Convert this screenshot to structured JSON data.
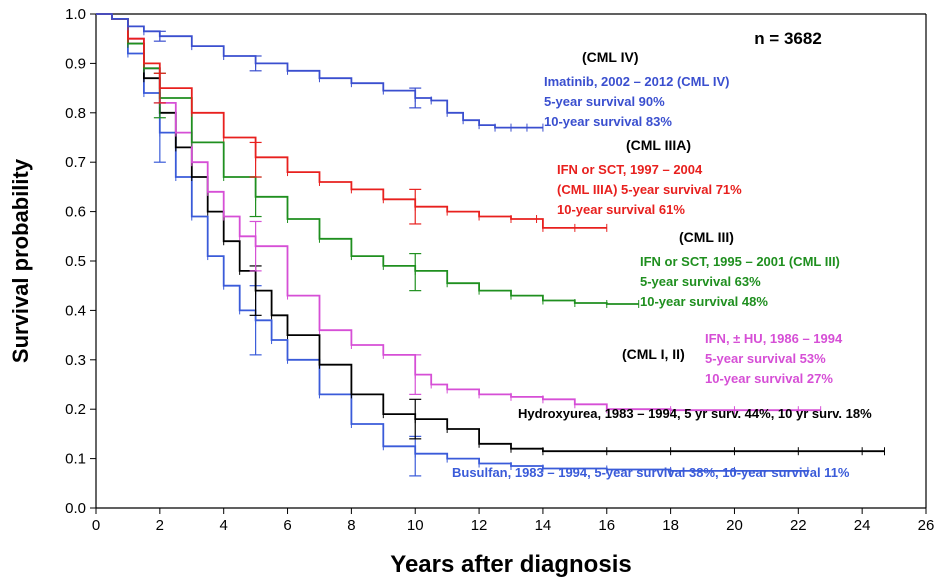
{
  "chart_data": {
    "type": "line",
    "title": "",
    "n_label": "n = 3682",
    "xlabel": "Years after diagnosis",
    "ylabel": "Survival probability",
    "xlim": [
      0,
      26
    ],
    "ylim": [
      0,
      1
    ],
    "xticks": [
      "0",
      "2",
      "4",
      "6",
      "8",
      "10",
      "12",
      "14",
      "16",
      "18",
      "20",
      "22",
      "24",
      "26"
    ],
    "yticks": [
      "0.0",
      "0.1",
      "0.2",
      "0.3",
      "0.4",
      "0.5",
      "0.6",
      "0.7",
      "0.8",
      "0.9",
      "1.0"
    ],
    "grid": false,
    "colors": {
      "imatinib": "#3a4fcf",
      "cml3a": "#e8201e",
      "cml3": "#1f8f1f",
      "ifn_hu": "#d64fd6",
      "hydroxyurea": "#000000",
      "busulfan": "#3a5bd9"
    },
    "series": [
      {
        "id": "imatinib",
        "x": [
          0,
          0.5,
          1,
          1.5,
          2,
          3,
          4,
          5,
          6,
          7,
          8,
          9,
          10,
          10.5,
          11,
          11.5,
          12,
          12.5,
          13,
          13.5,
          14
        ],
        "y": [
          1.0,
          0.99,
          0.975,
          0.965,
          0.955,
          0.935,
          0.915,
          0.9,
          0.885,
          0.87,
          0.86,
          0.845,
          0.83,
          0.825,
          0.8,
          0.785,
          0.775,
          0.77,
          0.77,
          0.77,
          0.77
        ],
        "err_x": [
          2,
          5,
          10
        ],
        "err_lo": [
          0.945,
          0.885,
          0.81
        ],
        "err_hi": [
          0.965,
          0.915,
          0.85
        ]
      },
      {
        "id": "cml3a",
        "x": [
          0,
          0.5,
          1,
          1.5,
          2,
          3,
          4,
          5,
          6,
          7,
          8,
          9,
          10,
          11,
          12,
          13,
          13.8,
          14,
          15,
          16
        ],
        "y": [
          1.0,
          0.99,
          0.95,
          0.9,
          0.85,
          0.8,
          0.75,
          0.71,
          0.68,
          0.66,
          0.645,
          0.625,
          0.61,
          0.6,
          0.59,
          0.585,
          0.585,
          0.567,
          0.567,
          0.567
        ],
        "err_x": [
          2,
          5,
          10
        ],
        "err_lo": [
          0.82,
          0.67,
          0.575
        ],
        "err_hi": [
          0.88,
          0.74,
          0.645
        ]
      },
      {
        "id": "cml3",
        "x": [
          0,
          0.5,
          1,
          1.5,
          2,
          3,
          4,
          5,
          6,
          7,
          8,
          9,
          10,
          11,
          12,
          13,
          14,
          15,
          16,
          17
        ],
        "y": [
          1.0,
          0.99,
          0.94,
          0.89,
          0.83,
          0.74,
          0.67,
          0.63,
          0.585,
          0.545,
          0.51,
          0.49,
          0.48,
          0.455,
          0.44,
          0.43,
          0.42,
          0.415,
          0.413,
          0.413
        ],
        "err_x": [
          2,
          5,
          10
        ],
        "err_lo": [
          0.79,
          0.59,
          0.44
        ],
        "err_hi": [
          0.88,
          0.67,
          0.515
        ]
      },
      {
        "id": "ifn_hu",
        "x": [
          0,
          0.5,
          1,
          1.5,
          2,
          2.5,
          3,
          3.5,
          4,
          4.5,
          5,
          6,
          7,
          8,
          9,
          10,
          10.5,
          11,
          12,
          13,
          14,
          15,
          16,
          18,
          20,
          22,
          22.7
        ],
        "y": [
          1.0,
          0.99,
          0.95,
          0.89,
          0.82,
          0.76,
          0.7,
          0.64,
          0.59,
          0.55,
          0.53,
          0.43,
          0.36,
          0.33,
          0.31,
          0.27,
          0.25,
          0.24,
          0.23,
          0.225,
          0.22,
          0.21,
          0.2,
          0.198,
          0.198,
          0.198,
          0.198
        ],
        "err_x": [
          5,
          10
        ],
        "err_lo": [
          0.48,
          0.23
        ],
        "err_hi": [
          0.58,
          0.31
        ]
      },
      {
        "id": "hydroxyurea",
        "x": [
          0,
          0.5,
          1,
          1.5,
          2,
          2.5,
          3,
          3.5,
          4,
          4.5,
          5,
          5.5,
          6,
          7,
          8,
          9,
          10,
          11,
          12,
          13,
          14,
          16,
          18,
          20,
          22,
          24,
          24.7
        ],
        "y": [
          1.0,
          0.99,
          0.94,
          0.87,
          0.8,
          0.73,
          0.67,
          0.6,
          0.54,
          0.48,
          0.44,
          0.39,
          0.35,
          0.29,
          0.23,
          0.19,
          0.18,
          0.16,
          0.13,
          0.12,
          0.115,
          0.115,
          0.115,
          0.115,
          0.115,
          0.115,
          0.115
        ],
        "err_x": [
          5,
          10
        ],
        "err_lo": [
          0.39,
          0.14
        ],
        "err_hi": [
          0.49,
          0.22
        ]
      },
      {
        "id": "busulfan",
        "x": [
          0,
          0.5,
          1,
          1.5,
          2,
          2.5,
          3,
          3.5,
          4,
          4.5,
          5,
          5.5,
          6,
          7,
          8,
          9,
          10,
          11,
          12,
          13,
          14,
          16,
          18,
          20,
          22.3
        ],
        "y": [
          1.0,
          0.99,
          0.92,
          0.84,
          0.76,
          0.67,
          0.59,
          0.51,
          0.45,
          0.4,
          0.38,
          0.34,
          0.3,
          0.23,
          0.17,
          0.125,
          0.11,
          0.1,
          0.09,
          0.085,
          0.08,
          0.078,
          0.075,
          0.075,
          0.075
        ],
        "err_x": [
          2,
          5,
          10
        ],
        "err_lo": [
          0.7,
          0.31,
          0.065
        ],
        "err_hi": [
          0.82,
          0.45,
          0.145
        ]
      }
    ],
    "annotations": {
      "cml4_group": "(CML IV)",
      "imatinib_line1": "Imatinib, 2002 – 2012 (CML IV)",
      "imatinib_line2": "5-year survival 90%",
      "imatinib_line3": "10-year survival 83%",
      "cml3a_group": "(CML IIIA)",
      "cml3a_line1": "IFN or SCT, 1997 – 2004",
      "cml3a_line2": "(CML IIIA) 5-year survival 71%",
      "cml3a_line3": "10-year survival 61%",
      "cml3_group": "(CML III)",
      "cml3_line1": "IFN or SCT, 1995 – 2001 (CML III)",
      "cml3_line2": "5-year survival 63%",
      "cml3_line3": "10-year survival 48%",
      "ifn_line1": "IFN, ± HU, 1986 – 1994",
      "ifn_line2": "5-year survival 53%",
      "ifn_line3": "10-year survival 27%",
      "cml12_group": "(CML I, II)",
      "hydroxyurea_line": "Hydroxyurea, 1983 – 1994, 5 yr surv. 44%, 10 yr surv. 18%",
      "busulfan_line": "Busulfan, 1983 – 1994, 5-year survival 38%, 10-year survival 11%"
    }
  }
}
